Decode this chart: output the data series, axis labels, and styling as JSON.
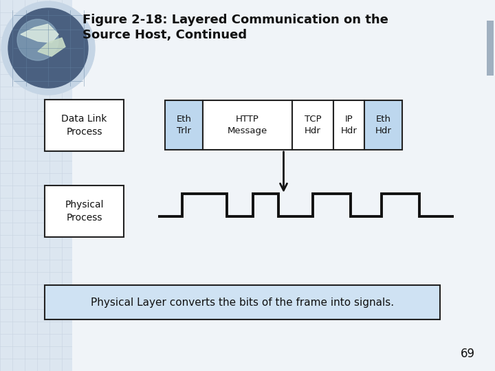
{
  "title_line1": "Figure 2-18: Layered Communication on the",
  "title_line2": "Source Host, Continued",
  "bg_color": "#dce6f0",
  "inner_bg": "#f5f7fa",
  "box_bg": "#ffffff",
  "box_border": "#222222",
  "light_blue": "#bdd7ee",
  "packet_border": "#222222",
  "note_bg": "#cfe2f3",
  "note_border": "#222222",
  "data_link_label": "Data Link\nProcess",
  "physical_label": "Physical\nProcess",
  "packet_cells": [
    "Eth\nTrlr",
    "HTTP\nMessage",
    "TCP\nHdr",
    "IP\nHdr",
    "Eth\nHdr"
  ],
  "packet_colors": [
    "#bdd7ee",
    "#ffffff",
    "#ffffff",
    "#ffffff",
    "#bdd7ee"
  ],
  "note_text": "Physical Layer converts the bits of the frame into signals.",
  "page_number": "69",
  "title_fontsize": 13,
  "label_fontsize": 10,
  "packet_fontsize": 9.5,
  "note_fontsize": 11
}
